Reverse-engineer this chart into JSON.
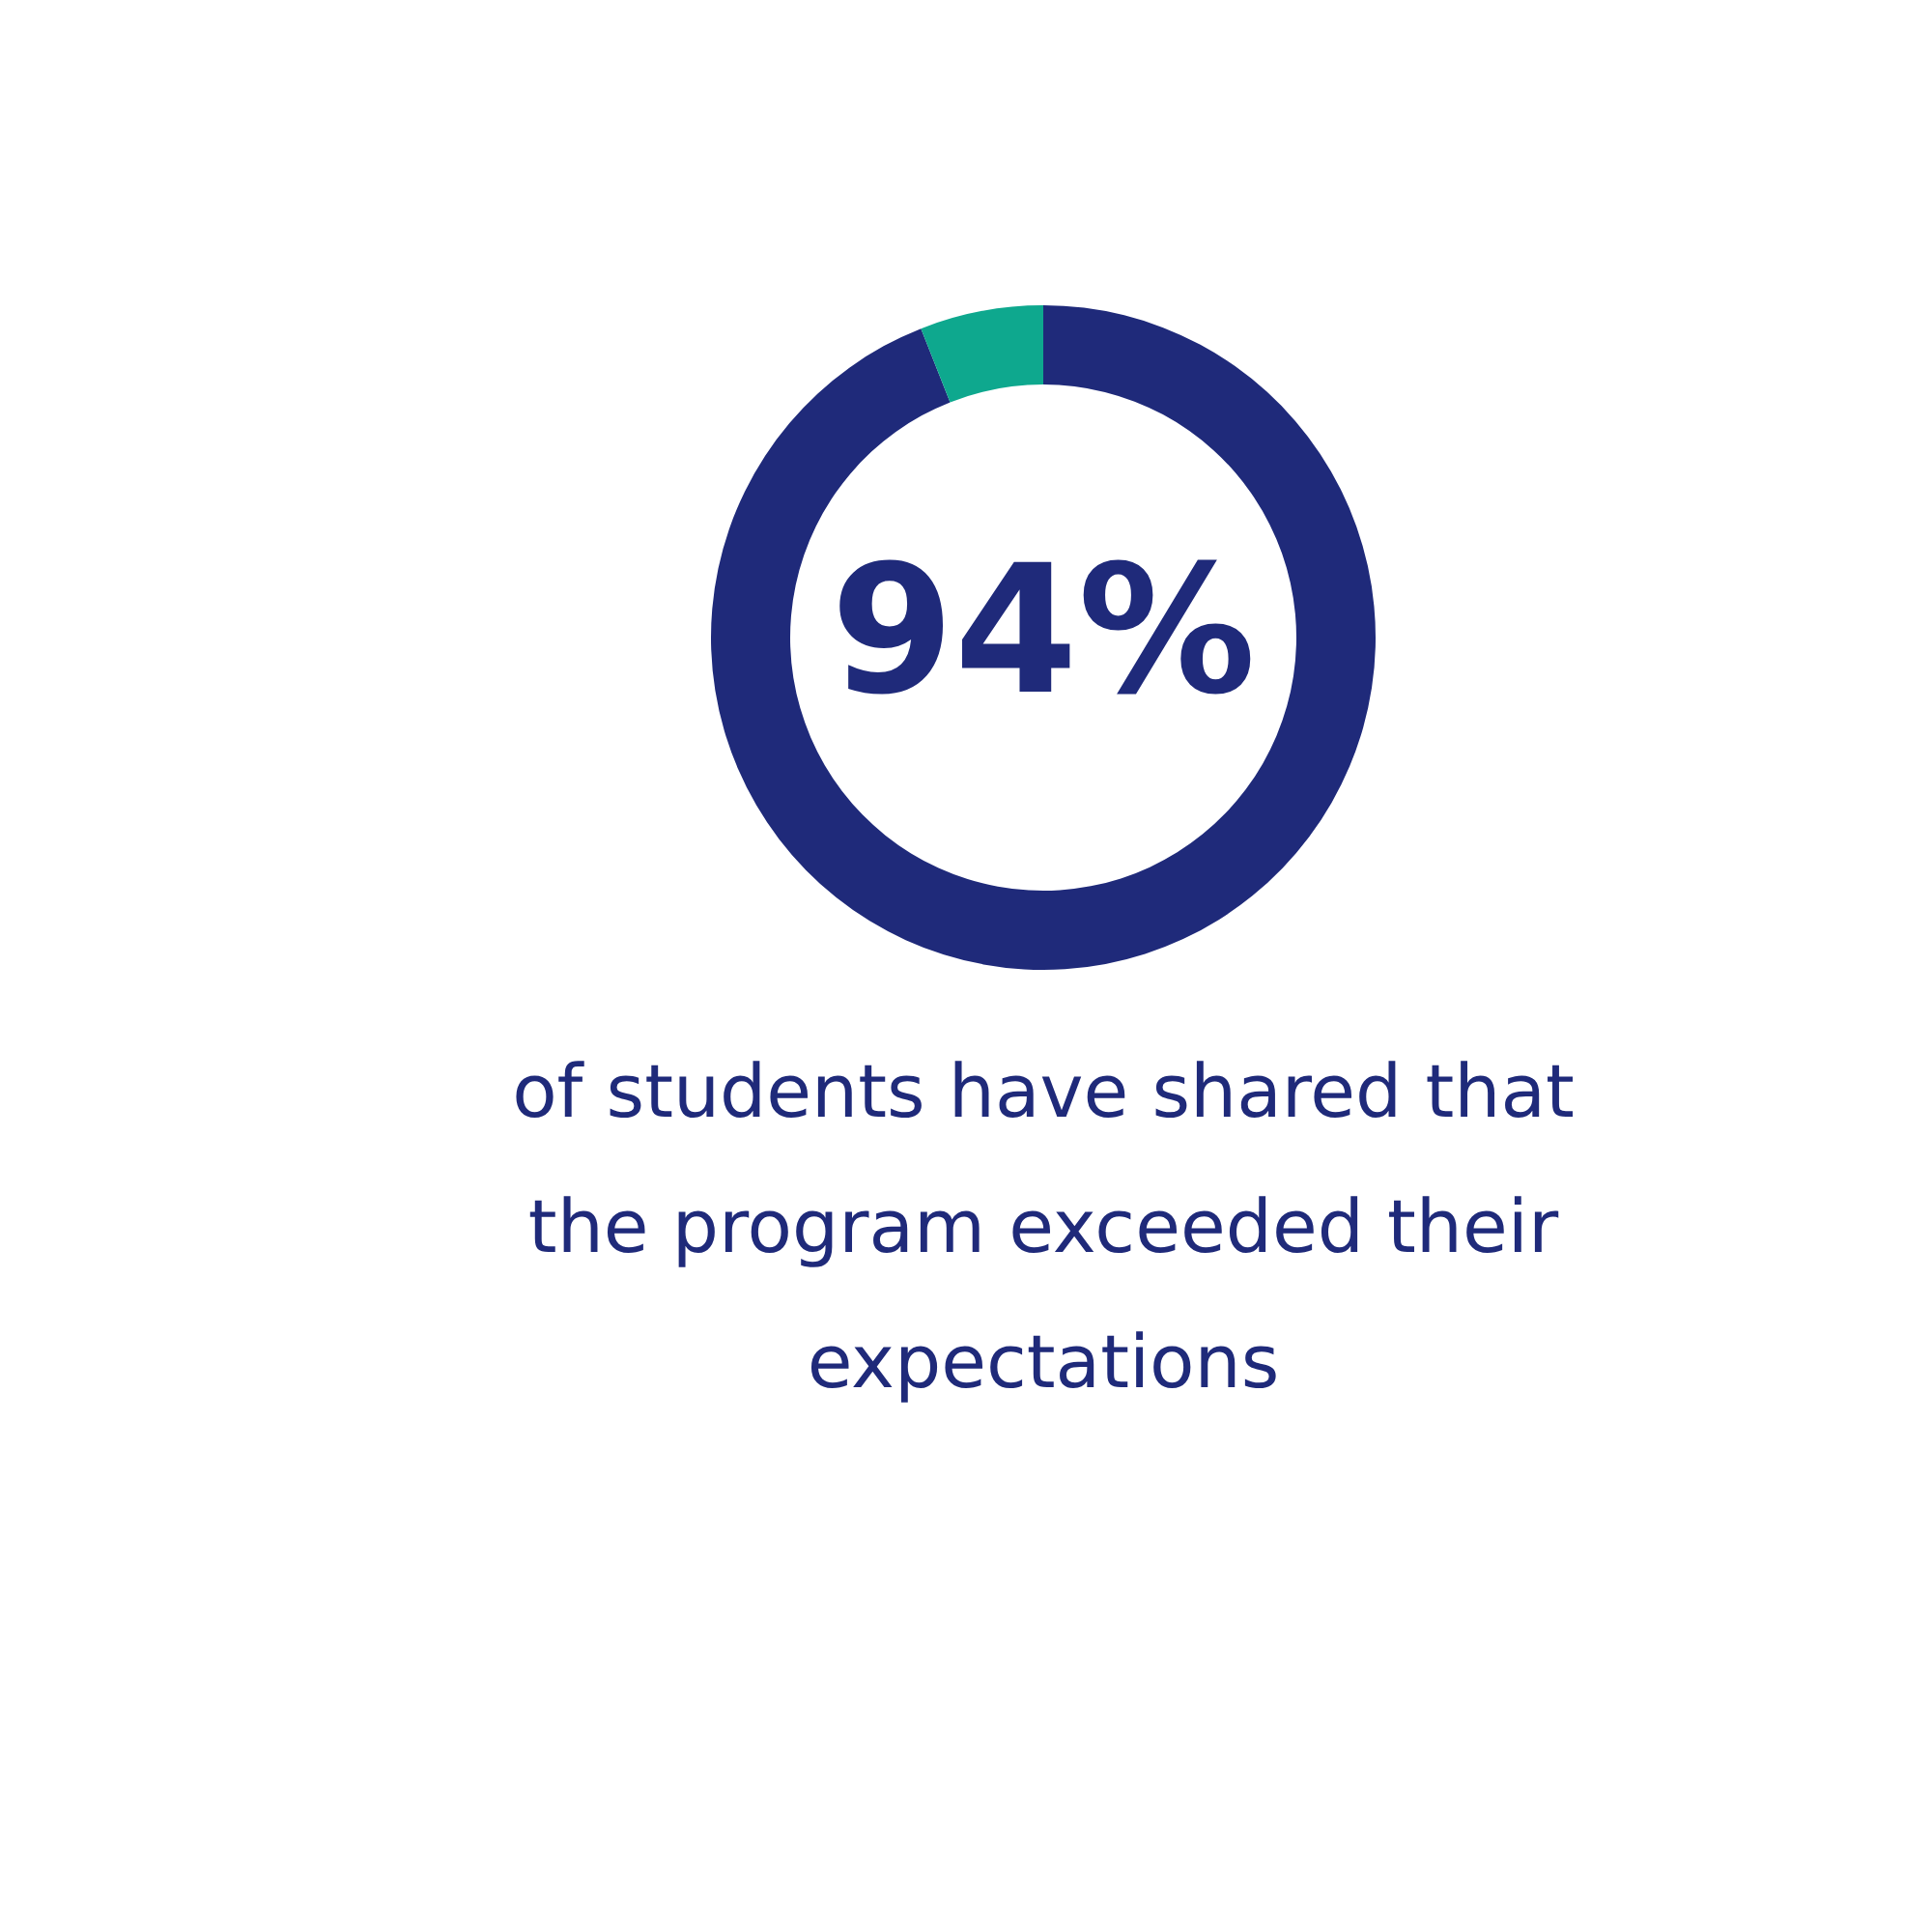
{
  "chart_data": {
    "type": "donut",
    "categories": [
      null,
      null
    ],
    "values": [
      94,
      6
    ],
    "colors": [
      "#1f2a7a",
      "#0ea88e"
    ],
    "value_labels": [
      "94%",
      null
    ],
    "annotations": [
      "of students have shared that the program exceeded their expectations"
    ]
  }
}
